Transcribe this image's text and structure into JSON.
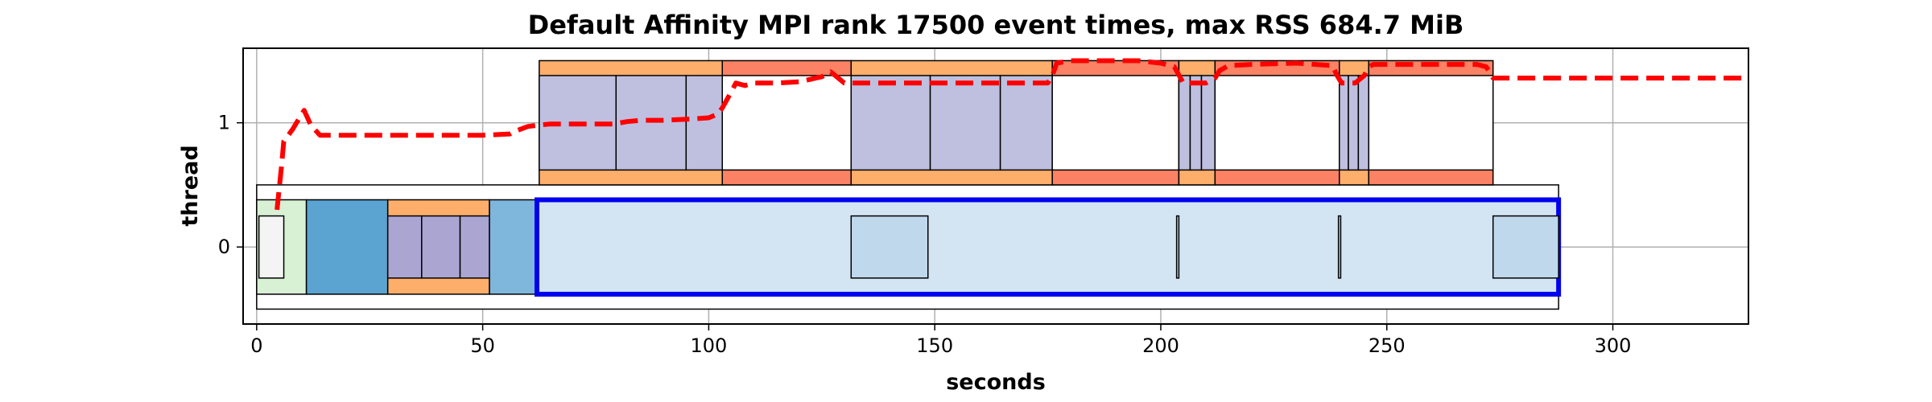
{
  "chart_data": {
    "type": "timeline",
    "title": "Default Affinity MPI rank 17500 event times, max RSS 684.7 MiB",
    "xlabel": "seconds",
    "ylabel": "thread",
    "xlim": [
      -3,
      330
    ],
    "ylim": [
      -0.62,
      1.6
    ],
    "xticks": [
      0,
      50,
      100,
      150,
      200,
      250,
      300
    ],
    "yticks": [
      0,
      1
    ],
    "grid": true,
    "boxes": [
      {
        "x0": 0,
        "x1": 288,
        "y0": -0.5,
        "y1": 0.5,
        "color": "#ffffff",
        "lw": 1.5
      },
      {
        "x0": 0,
        "x1": 11,
        "y0": -0.38,
        "y1": 0.38,
        "color": "#d8f0d4",
        "lw": 1.5
      },
      {
        "x0": 0.5,
        "x1": 6,
        "y0": -0.25,
        "y1": 0.25,
        "color": "#f4f4f4",
        "lw": 1.5
      },
      {
        "x0": 11,
        "x1": 29,
        "y0": -0.38,
        "y1": 0.38,
        "color": "#5ba3d0",
        "lw": 1.5
      },
      {
        "x0": 29,
        "x1": 51.5,
        "y0": -0.38,
        "y1": 0.38,
        "color": "#fdae6b",
        "lw": 1.5
      },
      {
        "x0": 29,
        "x1": 36.5,
        "y0": -0.25,
        "y1": 0.25,
        "color": "#aba5d2",
        "lw": 1.5
      },
      {
        "x0": 36.5,
        "x1": 45,
        "y0": -0.25,
        "y1": 0.25,
        "color": "#aba5d2",
        "lw": 1.5
      },
      {
        "x0": 45,
        "x1": 51.5,
        "y0": -0.25,
        "y1": 0.25,
        "color": "#aba5d2",
        "lw": 1.5
      },
      {
        "x0": 51.5,
        "x1": 62,
        "y0": -0.38,
        "y1": 0.38,
        "color": "#7eb6dc",
        "lw": 1.5
      },
      {
        "x0": 62,
        "x1": 288,
        "y0": -0.38,
        "y1": 0.38,
        "color": "#d3e5f3",
        "lw": 6,
        "stroke": "#0000ee"
      },
      {
        "x0": 131.5,
        "x1": 148.5,
        "y0": -0.25,
        "y1": 0.25,
        "color": "#c0d8ec",
        "lw": 1.5
      },
      {
        "x0": 203.5,
        "x1": 204,
        "y0": -0.25,
        "y1": 0.25,
        "color": "#c0d8ec",
        "lw": 1.5
      },
      {
        "x0": 239.3,
        "x1": 239.8,
        "y0": -0.25,
        "y1": 0.25,
        "color": "#c0d8ec",
        "lw": 1.5
      },
      {
        "x0": 273.5,
        "x1": 288,
        "y0": -0.25,
        "y1": 0.25,
        "color": "#c0d8ec",
        "lw": 1.5
      },
      {
        "x0": 62.5,
        "x1": 103,
        "y0": 0.5,
        "y1": 1.5,
        "color": "#fdae6b",
        "lw": 1.5
      },
      {
        "x0": 62.5,
        "x1": 79.5,
        "y0": 0.62,
        "y1": 1.38,
        "color": "#bfc0df",
        "lw": 1.5
      },
      {
        "x0": 79.5,
        "x1": 95,
        "y0": 0.62,
        "y1": 1.38,
        "color": "#bfc0df",
        "lw": 1.5
      },
      {
        "x0": 95,
        "x1": 103,
        "y0": 0.62,
        "y1": 1.38,
        "color": "#bfc0df",
        "lw": 1.5
      },
      {
        "x0": 103,
        "x1": 131.5,
        "y0": 0.5,
        "y1": 1.5,
        "color": "#fb8264",
        "lw": 1.5
      },
      {
        "x0": 103,
        "x1": 131.5,
        "y0": 0.62,
        "y1": 1.38,
        "color": "#ffffff",
        "lw": 1.5
      },
      {
        "x0": 131.5,
        "x1": 176,
        "y0": 0.5,
        "y1": 1.5,
        "color": "#fdae6b",
        "lw": 1.5
      },
      {
        "x0": 131.5,
        "x1": 149,
        "y0": 0.62,
        "y1": 1.38,
        "color": "#bfc0df",
        "lw": 1.5
      },
      {
        "x0": 149,
        "x1": 164.5,
        "y0": 0.62,
        "y1": 1.38,
        "color": "#bfc0df",
        "lw": 1.5
      },
      {
        "x0": 164.5,
        "x1": 176,
        "y0": 0.62,
        "y1": 1.38,
        "color": "#bfc0df",
        "lw": 1.5
      },
      {
        "x0": 176,
        "x1": 204,
        "y0": 0.5,
        "y1": 1.5,
        "color": "#fb8264",
        "lw": 1.5
      },
      {
        "x0": 176,
        "x1": 204,
        "y0": 0.62,
        "y1": 1.38,
        "color": "#ffffff",
        "lw": 1.5
      },
      {
        "x0": 204,
        "x1": 212,
        "y0": 0.5,
        "y1": 1.5,
        "color": "#fdae6b",
        "lw": 1.5
      },
      {
        "x0": 204,
        "x1": 206.5,
        "y0": 0.62,
        "y1": 1.38,
        "color": "#bfc0df",
        "lw": 1.5
      },
      {
        "x0": 206.5,
        "x1": 209,
        "y0": 0.62,
        "y1": 1.38,
        "color": "#bfc0df",
        "lw": 1.5
      },
      {
        "x0": 209,
        "x1": 212,
        "y0": 0.62,
        "y1": 1.38,
        "color": "#bfc0df",
        "lw": 1.5
      },
      {
        "x0": 212,
        "x1": 239.5,
        "y0": 0.5,
        "y1": 1.5,
        "color": "#fb8264",
        "lw": 1.5
      },
      {
        "x0": 212,
        "x1": 239.5,
        "y0": 0.62,
        "y1": 1.38,
        "color": "#ffffff",
        "lw": 1.5
      },
      {
        "x0": 239.5,
        "x1": 246,
        "y0": 0.5,
        "y1": 1.5,
        "color": "#fdae6b",
        "lw": 1.5
      },
      {
        "x0": 239.5,
        "x1": 241.5,
        "y0": 0.62,
        "y1": 1.38,
        "color": "#bfc0df",
        "lw": 1.5
      },
      {
        "x0": 241.5,
        "x1": 243.7,
        "y0": 0.62,
        "y1": 1.38,
        "color": "#bfc0df",
        "lw": 1.5
      },
      {
        "x0": 243.7,
        "x1": 246,
        "y0": 0.62,
        "y1": 1.38,
        "color": "#bfc0df",
        "lw": 1.5
      },
      {
        "x0": 246,
        "x1": 273.5,
        "y0": 0.5,
        "y1": 1.5,
        "color": "#fb8264",
        "lw": 1.5
      },
      {
        "x0": 246,
        "x1": 273.5,
        "y0": 0.62,
        "y1": 1.38,
        "color": "#ffffff",
        "lw": 1.5
      }
    ],
    "rss_line": {
      "color": "#ff0000",
      "x": [
        4.5,
        5.5,
        6,
        8,
        9.8,
        10.5,
        12,
        14,
        20,
        30,
        40,
        50,
        56,
        57,
        60,
        62,
        65,
        70,
        75,
        79,
        82,
        85,
        90,
        96,
        100,
        102,
        103,
        105,
        106,
        108,
        110,
        115,
        120,
        125,
        127,
        130,
        140,
        150,
        160,
        170,
        175,
        176,
        177,
        180,
        190,
        195,
        200,
        203,
        205,
        208,
        210,
        212,
        213,
        215,
        220,
        230,
        238,
        239,
        240,
        243,
        245,
        246,
        247,
        250,
        260,
        270,
        272,
        273.5,
        280,
        290,
        300,
        310,
        320,
        330
      ],
      "y": [
        0.3,
        0.65,
        0.85,
        0.95,
        1.06,
        1.1,
        0.98,
        0.9,
        0.9,
        0.9,
        0.9,
        0.9,
        0.91,
        0.93,
        0.97,
        0.98,
        0.99,
        0.99,
        0.99,
        0.99,
        1.01,
        1.02,
        1.02,
        1.03,
        1.04,
        1.07,
        1.12,
        1.25,
        1.32,
        1.3,
        1.32,
        1.32,
        1.33,
        1.37,
        1.41,
        1.32,
        1.32,
        1.32,
        1.32,
        1.32,
        1.32,
        1.38,
        1.48,
        1.5,
        1.5,
        1.5,
        1.48,
        1.45,
        1.32,
        1.32,
        1.32,
        1.36,
        1.42,
        1.46,
        1.47,
        1.48,
        1.46,
        1.38,
        1.32,
        1.32,
        1.38,
        1.45,
        1.47,
        1.47,
        1.47,
        1.47,
        1.45,
        1.36,
        1.36,
        1.36,
        1.36,
        1.36,
        1.36,
        1.36
      ]
    }
  }
}
